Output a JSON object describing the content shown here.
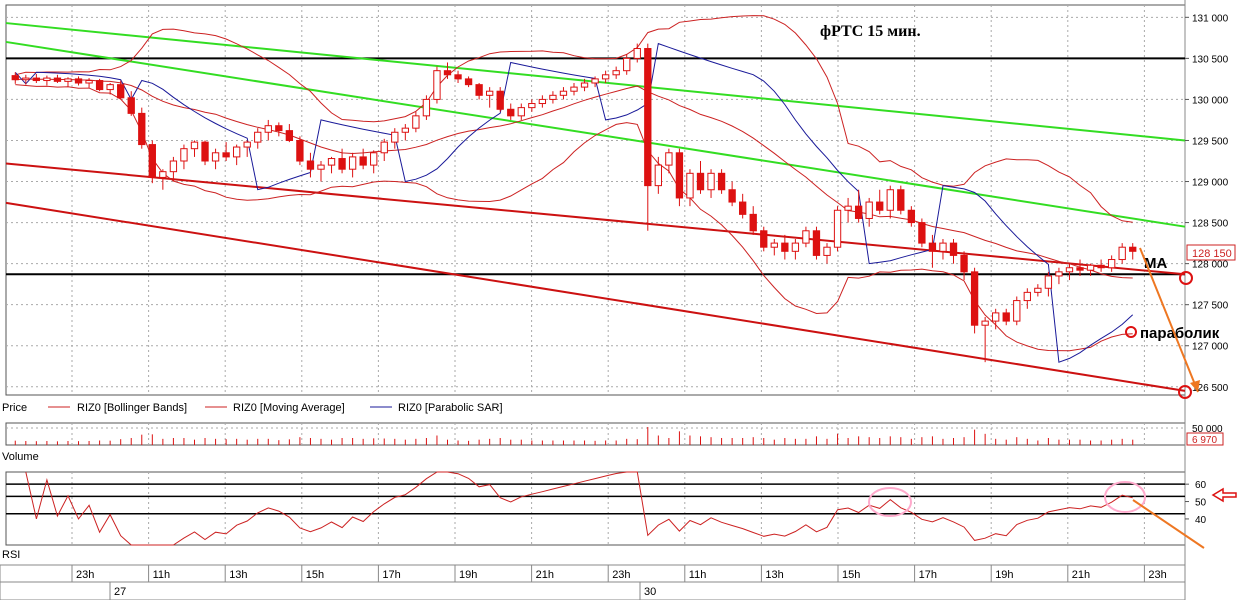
{
  "chart_data": {
    "type": "candlestick",
    "title": "фРТС   15 мин.",
    "price_axis": {
      "ticks": [
        "131 000",
        "130 500",
        "130 000",
        "129 500",
        "129 000",
        "128 500",
        "128 000",
        "127 500",
        "127 000",
        "126 500"
      ],
      "range": [
        126400,
        131150
      ],
      "last_price": "128 150"
    },
    "volume_axis": {
      "ticks": [
        "50 000"
      ],
      "last_value": "6 970"
    },
    "rsi_axis": {
      "ticks": [
        "60",
        "50",
        "40"
      ],
      "levels": [
        60,
        53,
        43
      ]
    },
    "time_labels": [
      "23h",
      "11h",
      "13h",
      "15h",
      "17h",
      "19h",
      "21h",
      "23h",
      "11h",
      "13h",
      "15h",
      "17h",
      "19h",
      "21h",
      "23h"
    ],
    "date_labels": [
      "27",
      "30"
    ],
    "panel_labels": {
      "price": "Price",
      "volume": "Volume",
      "rsi": "RSI"
    },
    "legend": [
      {
        "name": "RIZ0 [Bollinger Bands]",
        "color": "#cc2222"
      },
      {
        "name": "RIZ0 [Moving Average]",
        "color": "#cc2222"
      },
      {
        "name": "RIZ0 [Parabolic SAR]",
        "color": "#1a1a99"
      }
    ],
    "annotations": {
      "ma": "МА",
      "parabolic": "параболик"
    },
    "colors": {
      "candle": "#dd1111",
      "green_channel": "#33dd22",
      "red_channel": "#cc1111",
      "level": "#000000",
      "arrow": "#ee7722",
      "circle": "#ffaacc"
    },
    "horizontal_levels": [
      130500,
      127870
    ],
    "green_channel": [
      [
        130930,
        129500
      ],
      [
        130700,
        128450
      ]
    ],
    "red_channel": [
      [
        129220,
        127870
      ],
      [
        128740,
        126450
      ]
    ],
    "candles": [
      [
        130290,
        130330,
        130190,
        130240
      ],
      [
        130240,
        130300,
        130180,
        130260
      ],
      [
        130260,
        130310,
        130200,
        130230
      ],
      [
        130230,
        130290,
        130170,
        130260
      ],
      [
        130260,
        130300,
        130200,
        130220
      ],
      [
        130220,
        130270,
        130150,
        130250
      ],
      [
        130250,
        130280,
        130170,
        130200
      ],
      [
        130200,
        130260,
        130140,
        130230
      ],
      [
        130230,
        130250,
        130100,
        130120
      ],
      [
        130120,
        130200,
        130060,
        130180
      ],
      [
        130180,
        130230,
        130000,
        130020
      ],
      [
        130020,
        130100,
        129800,
        129830
      ],
      [
        129830,
        129900,
        129400,
        129450
      ],
      [
        129450,
        129500,
        128980,
        129050
      ],
      [
        129050,
        129150,
        128900,
        129120
      ],
      [
        129120,
        129300,
        129000,
        129250
      ],
      [
        129250,
        129450,
        129150,
        129400
      ],
      [
        129400,
        129500,
        129300,
        129480
      ],
      [
        129480,
        129500,
        129200,
        129250
      ],
      [
        129250,
        129400,
        129150,
        129350
      ],
      [
        129350,
        129480,
        129250,
        129300
      ],
      [
        129300,
        129450,
        129200,
        129420
      ],
      [
        129420,
        129500,
        129300,
        129480
      ],
      [
        129480,
        129650,
        129400,
        129600
      ],
      [
        129600,
        129750,
        129500,
        129680
      ],
      [
        129680,
        129720,
        129550,
        129620
      ],
      [
        129620,
        129700,
        129480,
        129500
      ],
      [
        129500,
        129550,
        129200,
        129250
      ],
      [
        129250,
        129350,
        129050,
        129150
      ],
      [
        129150,
        129250,
        129000,
        129200
      ],
      [
        129200,
        129300,
        129100,
        129280
      ],
      [
        129280,
        129400,
        129100,
        129150
      ],
      [
        129150,
        129350,
        129050,
        129300
      ],
      [
        129300,
        129400,
        129150,
        129200
      ],
      [
        129200,
        129380,
        129100,
        129350
      ],
      [
        129350,
        129520,
        129250,
        129480
      ],
      [
        129480,
        129650,
        129400,
        129600
      ],
      [
        129600,
        129700,
        129500,
        129650
      ],
      [
        129650,
        129850,
        129600,
        129800
      ],
      [
        129800,
        130050,
        129750,
        130000
      ],
      [
        130000,
        130400,
        129950,
        130350
      ],
      [
        130350,
        130450,
        130250,
        130300
      ],
      [
        130300,
        130350,
        130200,
        130250
      ],
      [
        130250,
        130280,
        130150,
        130180
      ],
      [
        130180,
        130200,
        130000,
        130050
      ],
      [
        130050,
        130150,
        129900,
        130100
      ],
      [
        130100,
        130150,
        129850,
        129880
      ],
      [
        129880,
        129950,
        129750,
        129800
      ],
      [
        129800,
        129950,
        129750,
        129900
      ],
      [
        129900,
        130000,
        129850,
        129950
      ],
      [
        129950,
        130050,
        129900,
        130000
      ],
      [
        130000,
        130100,
        129950,
        130050
      ],
      [
        130050,
        130150,
        130000,
        130100
      ],
      [
        130100,
        130200,
        130050,
        130150
      ],
      [
        130150,
        130250,
        130100,
        130200
      ],
      [
        130200,
        130280,
        130150,
        130250
      ],
      [
        130250,
        130350,
        130200,
        130300
      ],
      [
        130300,
        130400,
        130250,
        130350
      ],
      [
        130350,
        130550,
        130300,
        130500
      ],
      [
        130500,
        130680,
        130450,
        130620
      ],
      [
        130620,
        130680,
        128400,
        128950
      ],
      [
        128950,
        129300,
        128850,
        129200
      ],
      [
        129200,
        129400,
        129100,
        129350
      ],
      [
        129350,
        129400,
        128700,
        128800
      ],
      [
        128800,
        129150,
        128700,
        129100
      ],
      [
        129100,
        129250,
        128850,
        128900
      ],
      [
        128900,
        129150,
        128800,
        129100
      ],
      [
        129100,
        129150,
        128850,
        128900
      ],
      [
        128900,
        129000,
        128700,
        128750
      ],
      [
        128750,
        128850,
        128550,
        128600
      ],
      [
        128600,
        128700,
        128350,
        128400
      ],
      [
        128400,
        128450,
        128150,
        128200
      ],
      [
        128200,
        128300,
        128100,
        128250
      ],
      [
        128250,
        128350,
        128050,
        128150
      ],
      [
        128150,
        128300,
        128050,
        128250
      ],
      [
        128250,
        128450,
        128200,
        128400
      ],
      [
        128400,
        128450,
        128050,
        128100
      ],
      [
        128100,
        128250,
        128000,
        128200
      ],
      [
        128200,
        128700,
        128150,
        128650
      ],
      [
        128650,
        128800,
        128500,
        128700
      ],
      [
        128700,
        128900,
        128500,
        128550
      ],
      [
        128550,
        128800,
        128450,
        128750
      ],
      [
        128750,
        128900,
        128600,
        128650
      ],
      [
        128650,
        128950,
        128550,
        128900
      ],
      [
        128900,
        128950,
        128600,
        128650
      ],
      [
        128650,
        128700,
        128450,
        128500
      ],
      [
        128500,
        128550,
        128200,
        128250
      ],
      [
        128250,
        128350,
        127950,
        128150
      ],
      [
        128150,
        128300,
        128050,
        128250
      ],
      [
        128250,
        128300,
        128000,
        128100
      ],
      [
        128100,
        128150,
        127800,
        127900
      ],
      [
        127900,
        127950,
        127150,
        127250
      ],
      [
        127250,
        127350,
        126800,
        127300
      ],
      [
        127300,
        127450,
        127200,
        127400
      ],
      [
        127400,
        127450,
        127250,
        127300
      ],
      [
        127300,
        127600,
        127250,
        127550
      ],
      [
        127550,
        127700,
        127450,
        127650
      ],
      [
        127650,
        127750,
        127600,
        127700
      ],
      [
        127700,
        127900,
        127600,
        127850
      ],
      [
        127850,
        127950,
        127750,
        127900
      ],
      [
        127900,
        128000,
        127800,
        127950
      ],
      [
        127950,
        128050,
        127850,
        127920
      ],
      [
        127920,
        128000,
        127850,
        127980
      ],
      [
        127980,
        128050,
        127900,
        127950
      ],
      [
        127950,
        128100,
        127900,
        128050
      ],
      [
        128050,
        128250,
        128000,
        128200
      ],
      [
        128200,
        128250,
        128050,
        128150
      ]
    ]
  }
}
